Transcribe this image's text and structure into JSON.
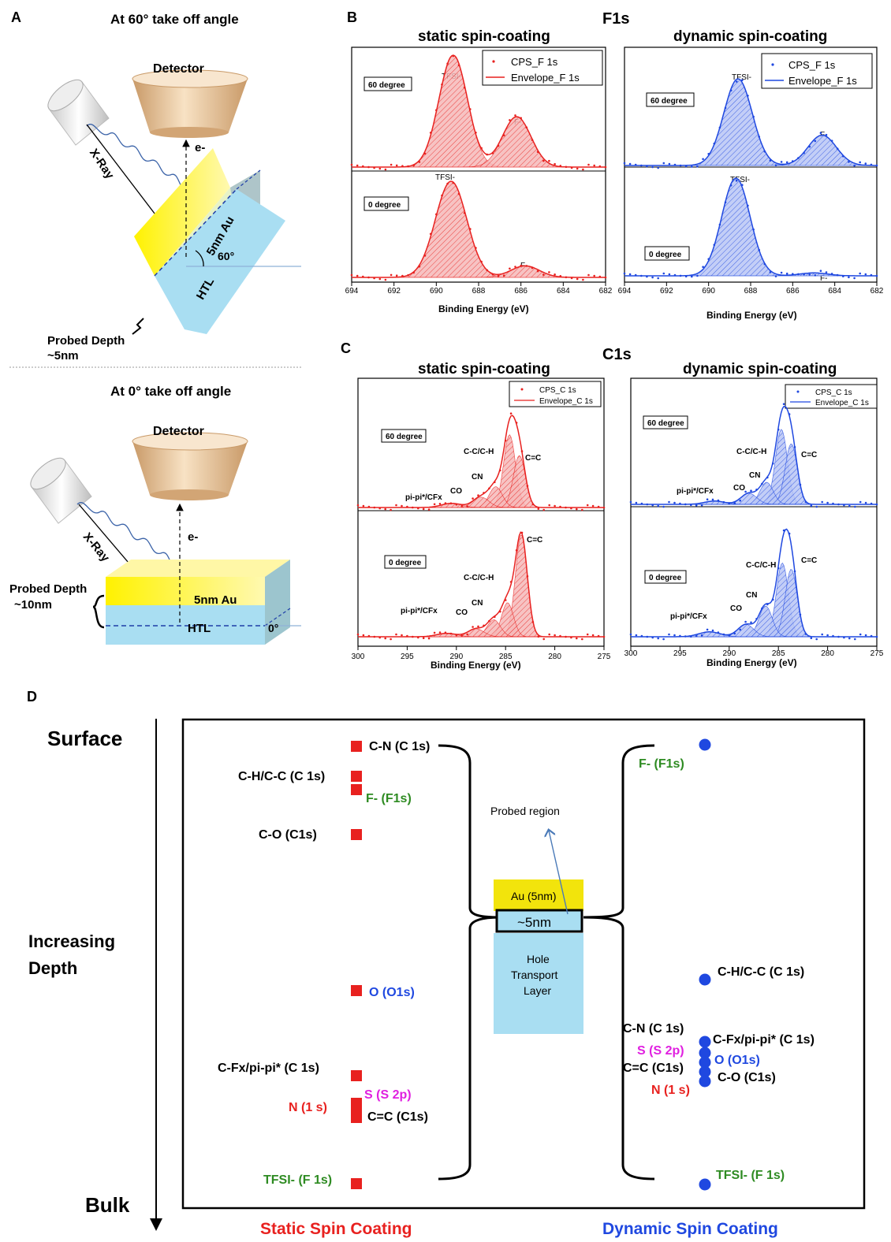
{
  "panel_a": {
    "letter": "A",
    "top_title": "At 60° take off angle",
    "bottom_title": "At 0° take off angle",
    "detector": "Detector",
    "xray": "X-Ray",
    "electron": "e-",
    "au_layer": "5nm Au",
    "htl": "HTL",
    "angle_60": "60°",
    "angle_0": "0°",
    "probed_depth": "Probed Depth",
    "depth_top": "~5nm",
    "depth_bottom": "~10nm"
  },
  "panel_b": {
    "letter": "B",
    "center_title": "F1s",
    "left_title": "static spin-coating",
    "right_title": "dynamic spin-coating",
    "legend_points": "CPS_F 1s",
    "legend_envelope": "Envelope_F 1s",
    "deg60": "60 degree",
    "deg0": "0 degree",
    "peak_tfsi": "TFSI-",
    "peak_f": "F-",
    "xlabel": "Binding Energy (eV)",
    "ticks": [
      "694",
      "692",
      "690",
      "688",
      "686",
      "684",
      "682"
    ]
  },
  "panel_c": {
    "letter": "C",
    "center_title": "C1s",
    "left_title": "static spin-coating",
    "right_title": "dynamic spin-coating",
    "legend_points": "CPS_C 1s",
    "legend_envelope": "Envelope_C 1s",
    "deg60": "60 degree",
    "deg0": "0 degree",
    "peak_cc": "C-C/C-H",
    "peak_c_eq_c": "C=C",
    "peak_cn": "CN",
    "peak_co": "CO",
    "peak_pi": "pi-pi*/CFx",
    "xlabel": "Binding Energy (eV)",
    "ticks": [
      "300",
      "295",
      "290",
      "285",
      "280",
      "275"
    ]
  },
  "panel_d": {
    "letter": "D",
    "axis_top": "Surface",
    "axis_mid1": "Increasing",
    "axis_mid2": "Depth",
    "axis_bottom": "Bulk",
    "probed_region": "Probed region",
    "au": "Au (5nm)",
    "depth": "~5nm",
    "htl1": "Hole",
    "htl2": "Transport",
    "htl3": "Layer",
    "static_caption": "Static Spin Coating",
    "dynamic_caption": "Dynamic Spin Coating",
    "static_labels": [
      "C-N (C 1s)",
      "C-H/C-C (C 1s)",
      "F- (F1s)",
      "C-O (C1s)",
      "O (O1s)",
      "C-Fx/pi-pi* (C 1s)",
      "S (S 2p)",
      "N (1 s)",
      "C=C (C1s)",
      "TFSI- (F 1s)"
    ],
    "dynamic_labels": [
      "F- (F1s)",
      "C-H/C-C (C 1s)",
      "C-N (C 1s)",
      "C-Fx/pi-pi* (C 1s)",
      "S (S 2p)",
      "O (O1s)",
      "C=C (C1s)",
      "C-O (C1s)",
      "N (1 s)",
      "TFSI- (F 1s)"
    ]
  },
  "colors": {
    "static": "#e8211f",
    "dynamic": "#1f48e0",
    "green": "#2e8b22",
    "magenta": "#e020e0",
    "gold": "#f2e40c",
    "htl": "#a9def2"
  },
  "chart_data": [
    {
      "type": "line",
      "name_panel": "B-static",
      "x_range": [
        694,
        682
      ],
      "series": [
        {
          "name": "60 degree",
          "peaks": [
            {
              "center": 689.2,
              "height": 1.0,
              "width": 1.0
            },
            {
              "center": 686.2,
              "height": 0.45,
              "width": 1.0
            }
          ]
        },
        {
          "name": "0 degree",
          "peaks": [
            {
              "center": 689.3,
              "height": 1.0,
              "width": 1.1
            },
            {
              "center": 685.8,
              "height": 0.12,
              "width": 1.0
            }
          ]
        }
      ]
    },
    {
      "type": "line",
      "name_panel": "B-dynamic",
      "x_range": [
        694,
        682
      ],
      "series": [
        {
          "name": "60 degree",
          "peaks": [
            {
              "center": 688.6,
              "height": 1.0,
              "width": 1.0
            },
            {
              "center": 684.6,
              "height": 0.35,
              "width": 1.0
            }
          ]
        },
        {
          "name": "0 degree",
          "peaks": [
            {
              "center": 688.7,
              "height": 1.0,
              "width": 1.0
            },
            {
              "center": 685.0,
              "height": 0.03,
              "width": 1.0
            }
          ]
        }
      ]
    },
    {
      "type": "line",
      "name_panel": "C-static",
      "x_range": [
        300,
        275
      ],
      "series": [
        {
          "name": "60 degree",
          "peaks": [
            {
              "center": 284.6,
              "height": 0.7,
              "width": 0.9
            },
            {
              "center": 283.6,
              "height": 0.5,
              "width": 0.9
            },
            {
              "center": 286.0,
              "height": 0.2,
              "width": 1.0
            },
            {
              "center": 287.5,
              "height": 0.1,
              "width": 1.2
            },
            {
              "center": 290.5,
              "height": 0.04,
              "width": 1.5
            }
          ]
        },
        {
          "name": "0 degree",
          "peaks": [
            {
              "center": 283.4,
              "height": 0.9,
              "width": 0.9
            },
            {
              "center": 284.8,
              "height": 0.3,
              "width": 0.9
            },
            {
              "center": 286.2,
              "height": 0.15,
              "width": 1.0
            },
            {
              "center": 288.0,
              "height": 0.07,
              "width": 1.2
            },
            {
              "center": 291.0,
              "height": 0.03,
              "width": 1.5
            }
          ]
        }
      ]
    },
    {
      "type": "line",
      "name_panel": "C-dynamic",
      "x_range": [
        300,
        275
      ],
      "series": [
        {
          "name": "60 degree",
          "peaks": [
            {
              "center": 284.7,
              "height": 0.68,
              "width": 0.9
            },
            {
              "center": 283.7,
              "height": 0.55,
              "width": 0.9
            },
            {
              "center": 286.2,
              "height": 0.2,
              "width": 1.0
            },
            {
              "center": 288.0,
              "height": 0.1,
              "width": 1.2
            },
            {
              "center": 291.5,
              "height": 0.03,
              "width": 1.5
            }
          ]
        },
        {
          "name": "0 degree",
          "peaks": [
            {
              "center": 284.6,
              "height": 0.6,
              "width": 0.9
            },
            {
              "center": 283.7,
              "height": 0.55,
              "width": 0.9
            },
            {
              "center": 286.3,
              "height": 0.25,
              "width": 1.0
            },
            {
              "center": 288.3,
              "height": 0.1,
              "width": 1.2
            },
            {
              "center": 292.0,
              "height": 0.04,
              "width": 1.6
            }
          ]
        }
      ]
    }
  ]
}
